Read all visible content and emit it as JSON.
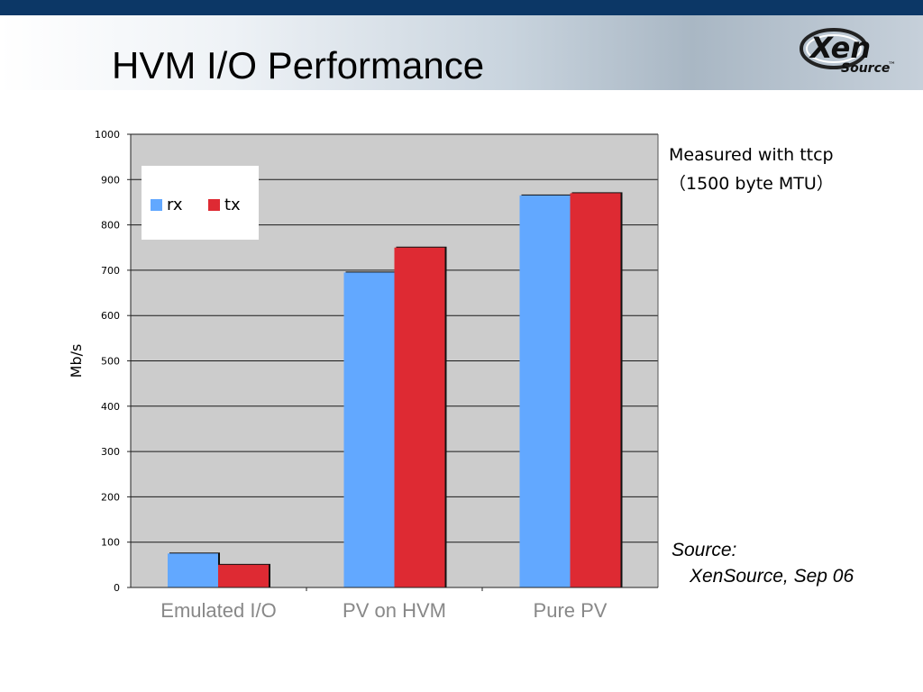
{
  "slide": {
    "title": "HVM I/O Performance",
    "logo": {
      "word1": "Xen",
      "word2": "Source",
      "trademark": "™"
    },
    "note_line1": "Measured  with  ttcp",
    "note_line2": "（1500  byte  MTU）",
    "source_line1": "Source:",
    "source_line2": "XenSource, Sep 06"
  },
  "colors": {
    "top_bar": "#0c3766",
    "plot_background": "#cccccc",
    "rx": "#62a8ff",
    "tx": "#de2a33"
  },
  "chart_data": {
    "type": "bar",
    "categories": [
      "Emulated I/O",
      "PV on HVM",
      "Pure PV"
    ],
    "series": [
      {
        "name": "rx",
        "values": [
          75,
          695,
          865
        ]
      },
      {
        "name": "tx",
        "values": [
          50,
          750,
          870
        ]
      }
    ],
    "ylabel": "Mb/s",
    "ylim": [
      0,
      1000
    ],
    "yticks": [
      "0",
      "100",
      "200",
      "300",
      "400",
      "500",
      "600",
      "700",
      "800",
      "900",
      "1000"
    ],
    "grid": true,
    "legend": "top-left"
  }
}
